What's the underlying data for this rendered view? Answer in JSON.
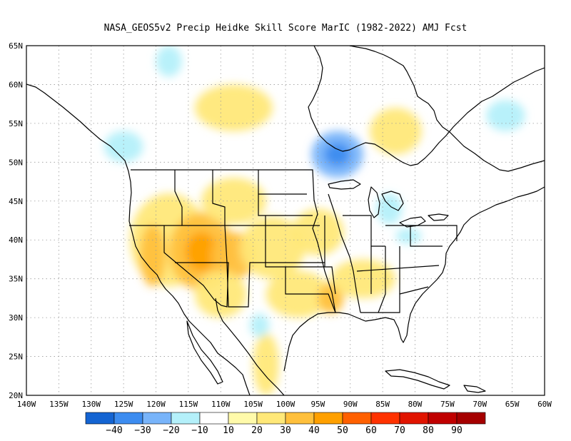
{
  "title": "NASA_GEOS5v2 Precip Heidke Skill Score MarIC (1982-2022) AMJ Fcst",
  "map": {
    "lon_min": -140,
    "lon_max": -60,
    "lat_min": 20,
    "lat_max": 65,
    "lon_labels": [
      "140W",
      "135W",
      "130W",
      "125W",
      "120W",
      "115W",
      "110W",
      "105W",
      "100W",
      "95W",
      "90W",
      "85W",
      "80W",
      "75W",
      "70W",
      "65W",
      "60W"
    ],
    "lat_labels": [
      "20N",
      "25N",
      "30N",
      "35N",
      "40N",
      "45N",
      "50N",
      "55N",
      "60N",
      "65N"
    ],
    "skill_regions": [
      {
        "lon": -118,
        "lat": 40,
        "level": 20,
        "rx": 6,
        "ry": 6
      },
      {
        "lon": -113,
        "lat": 38.5,
        "level": 30,
        "rx": 5,
        "ry": 5
      },
      {
        "lon": -113,
        "lat": 38.5,
        "level": 40,
        "rx": 2.5,
        "ry": 2.5
      },
      {
        "lon": -108,
        "lat": 38,
        "level": 30,
        "rx": 3.5,
        "ry": 3
      },
      {
        "lon": -120.5,
        "lat": 38,
        "level": 30,
        "rx": 2,
        "ry": 4
      },
      {
        "lon": -102,
        "lat": 39,
        "level": 20,
        "rx": 5,
        "ry": 4
      },
      {
        "lon": -95,
        "lat": 41,
        "level": 20,
        "rx": 4,
        "ry": 3
      },
      {
        "lon": -108,
        "lat": 45,
        "level": 20,
        "rx": 5,
        "ry": 3
      },
      {
        "lon": -110,
        "lat": 33,
        "level": 20,
        "rx": 4,
        "ry": 3
      },
      {
        "lon": -98,
        "lat": 33,
        "level": 20,
        "rx": 5,
        "ry": 3
      },
      {
        "lon": -93,
        "lat": 32.5,
        "level": 30,
        "rx": 2,
        "ry": 2
      },
      {
        "lon": -88,
        "lat": 35,
        "level": 20,
        "rx": 5,
        "ry": 2.5
      },
      {
        "lon": -103,
        "lat": 24,
        "level": 20,
        "rx": 2,
        "ry": 4
      },
      {
        "lon": -108,
        "lat": 57,
        "level": 20,
        "rx": 6,
        "ry": 3
      },
      {
        "lon": -83,
        "lat": 54,
        "level": 20,
        "rx": 4,
        "ry": 3
      },
      {
        "lon": -92,
        "lat": 51,
        "level": -20,
        "rx": 4,
        "ry": 3
      },
      {
        "lon": -92,
        "lat": 51,
        "level": -30,
        "rx": 2,
        "ry": 1.5
      },
      {
        "lon": -125,
        "lat": 52,
        "level": -10,
        "rx": 3,
        "ry": 2
      },
      {
        "lon": -118,
        "lat": 63,
        "level": -10,
        "rx": 2,
        "ry": 2
      },
      {
        "lon": -84,
        "lat": 44,
        "level": -10,
        "rx": 2,
        "ry": 2
      },
      {
        "lon": -81,
        "lat": 40.5,
        "level": -10,
        "rx": 2,
        "ry": 1
      },
      {
        "lon": -66,
        "lat": 56,
        "level": -10,
        "rx": 3,
        "ry": 2
      },
      {
        "lon": -104,
        "lat": 29,
        "level": -10,
        "rx": 1.5,
        "ry": 1.5
      }
    ]
  },
  "colorbar": {
    "colors": [
      "#1464d2",
      "#3c8cf0",
      "#78b4fa",
      "#b4f0fa",
      "#ffffff",
      "#fffaaa",
      "#ffe878",
      "#ffc03c",
      "#ffa000",
      "#ff6000",
      "#ff3200",
      "#e11400",
      "#c00000",
      "#a50000"
    ],
    "labels": [
      "-40",
      "-30",
      "-20",
      "-10",
      "10",
      "20",
      "30",
      "40",
      "50",
      "60",
      "70",
      "80",
      "90"
    ]
  }
}
